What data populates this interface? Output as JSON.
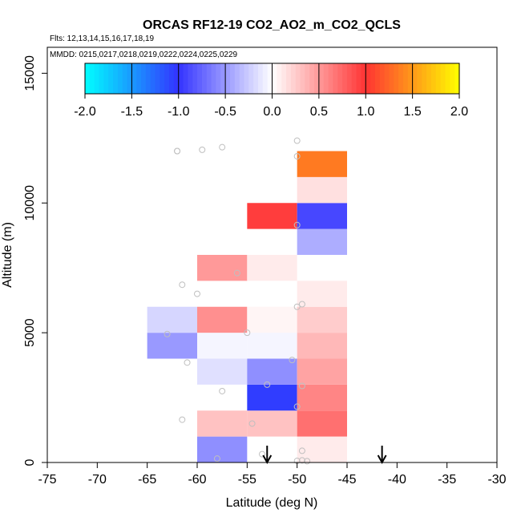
{
  "chart_data": {
    "type": "heatmap",
    "title": "ORCAS RF12-19 CO2_AO2_m_CO2_QCLS",
    "flights_note": "Flts: 12,13,14,15,16,17,18,19",
    "dates_note": "MMDD: 0215,0217,0218,0219,0222,0224,0225,0229",
    "xlabel": "Latitude (deg N)",
    "ylabel": "Altitude (m)",
    "xlim": [
      -75,
      -30
    ],
    "ylim": [
      0,
      16000
    ],
    "xticks": [
      "-75",
      "-70",
      "-65",
      "-60",
      "-55",
      "-50",
      "-45",
      "-40",
      "-35",
      "-30"
    ],
    "yticks": [
      "0",
      "5000",
      "10000",
      "15000"
    ],
    "colorbar": {
      "range": [
        -2.0,
        2.0
      ],
      "ticks": [
        "-2.0",
        "-1.5",
        "-1.0",
        "-0.5",
        "0.0",
        "0.5",
        "1.0",
        "1.5",
        "2.0"
      ]
    },
    "cells": [
      {
        "lat": [
          -60,
          -55
        ],
        "alt": [
          0,
          1000
        ],
        "value": -0.55
      },
      {
        "lat": [
          -50,
          -45
        ],
        "alt": [
          0,
          1000
        ],
        "value": 0.1
      },
      {
        "lat": [
          -60,
          -55
        ],
        "alt": [
          1000,
          2000
        ],
        "value": 0.3
      },
      {
        "lat": [
          -55,
          -50
        ],
        "alt": [
          1000,
          2000
        ],
        "value": 0.3
      },
      {
        "lat": [
          -50,
          -45
        ],
        "alt": [
          1000,
          2000
        ],
        "value": 0.7
      },
      {
        "lat": [
          -55,
          -50
        ],
        "alt": [
          2000,
          3000
        ],
        "value": -1.05
      },
      {
        "lat": [
          -50,
          -45
        ],
        "alt": [
          2000,
          3000
        ],
        "value": 0.6
      },
      {
        "lat": [
          -60,
          -55
        ],
        "alt": [
          3000,
          4000
        ],
        "value": -0.15
      },
      {
        "lat": [
          -55,
          -50
        ],
        "alt": [
          3000,
          4000
        ],
        "value": -0.55
      },
      {
        "lat": [
          -50,
          -45
        ],
        "alt": [
          3000,
          4000
        ],
        "value": 0.45
      },
      {
        "lat": [
          -65,
          -60
        ],
        "alt": [
          4000,
          5000
        ],
        "value": -0.5
      },
      {
        "lat": [
          -60,
          -55
        ],
        "alt": [
          4000,
          5000
        ],
        "value": -0.05
      },
      {
        "lat": [
          -55,
          -50
        ],
        "alt": [
          4000,
          5000
        ],
        "value": -0.05
      },
      {
        "lat": [
          -50,
          -45
        ],
        "alt": [
          4000,
          5000
        ],
        "value": 0.35
      },
      {
        "lat": [
          -65,
          -60
        ],
        "alt": [
          5000,
          6000
        ],
        "value": -0.2
      },
      {
        "lat": [
          -60,
          -55
        ],
        "alt": [
          5000,
          6000
        ],
        "value": 0.55
      },
      {
        "lat": [
          -55,
          -50
        ],
        "alt": [
          5000,
          6000
        ],
        "value": 0.05
      },
      {
        "lat": [
          -50,
          -45
        ],
        "alt": [
          5000,
          6000
        ],
        "value": 0.25
      },
      {
        "lat": [
          -50,
          -45
        ],
        "alt": [
          6000,
          7000
        ],
        "value": 0.1
      },
      {
        "lat": [
          -60,
          -55
        ],
        "alt": [
          7000,
          8000
        ],
        "value": 0.5
      },
      {
        "lat": [
          -55,
          -50
        ],
        "alt": [
          7000,
          8000
        ],
        "value": 0.1
      },
      {
        "lat": [
          -50,
          -45
        ],
        "alt": [
          8000,
          9000
        ],
        "value": -0.4
      },
      {
        "lat": [
          -55,
          -50
        ],
        "alt": [
          9000,
          10000
        ],
        "value": 0.95
      },
      {
        "lat": [
          -50,
          -45
        ],
        "alt": [
          9000,
          10000
        ],
        "value": -0.9
      },
      {
        "lat": [
          -50,
          -45
        ],
        "alt": [
          10000,
          11000
        ],
        "value": 0.15
      },
      {
        "lat": [
          -50,
          -45
        ],
        "alt": [
          11000,
          12000
        ],
        "value": 1.35
      }
    ],
    "sample_points": [
      [
        -58.0,
        150
      ],
      [
        -53.5,
        320
      ],
      [
        -50.0,
        60
      ],
      [
        -49.5,
        80
      ],
      [
        -49.5,
        450
      ],
      [
        -49.0,
        50
      ],
      [
        -61.5,
        1650
      ],
      [
        -54.5,
        1500
      ],
      [
        -50.0,
        2150
      ],
      [
        -57.5,
        2750
      ],
      [
        -53.0,
        3000
      ],
      [
        -49.5,
        2950
      ],
      [
        -61.0,
        3850
      ],
      [
        -50.5,
        3950
      ],
      [
        -63.0,
        4950
      ],
      [
        -55.0,
        5000
      ],
      [
        -50.0,
        6000
      ],
      [
        -49.5,
        6100
      ],
      [
        -60.0,
        6500
      ],
      [
        -61.5,
        6850
      ],
      [
        -56.0,
        7300
      ],
      [
        -50.0,
        9150
      ],
      [
        -50.0,
        11800
      ],
      [
        -50.0,
        12400
      ],
      [
        -57.5,
        12150
      ],
      [
        -59.5,
        12050
      ],
      [
        -62.0,
        12000
      ],
      [
        -62.0,
        12000
      ]
    ],
    "arrow_markers_lat": [
      -53,
      -41.5
    ]
  }
}
